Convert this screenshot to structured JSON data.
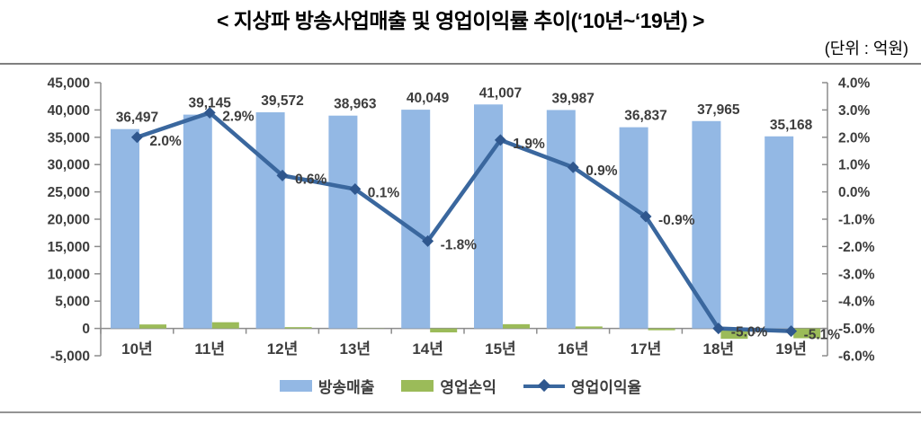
{
  "header": {
    "title": "< 지상파 방송사업매출 및 영업이익률 추이(‘10년~‘19년) >",
    "unit_label": "(단위 : 억원)"
  },
  "chart_data": {
    "type": "bar",
    "subtype": "combo-bar-line-dual-axis",
    "title": "지상파 방송사업매출 및 영업이익률 추이(‘10년~‘19년)",
    "unit": "억원",
    "categories": [
      "10년",
      "11년",
      "12년",
      "13년",
      "14년",
      "15년",
      "16년",
      "17년",
      "18년",
      "19년"
    ],
    "series": [
      {
        "name": "방송매출",
        "type": "bar",
        "axis": "left",
        "color": "#93b8e4",
        "values": [
          36497,
          39145,
          39572,
          38963,
          40049,
          41007,
          39987,
          36837,
          37965,
          35168
        ],
        "labels": [
          "36,497",
          "39,145",
          "39,572",
          "38,963",
          "40,049",
          "41,007",
          "39,987",
          "36,837",
          "37,965",
          "35,168"
        ]
      },
      {
        "name": "영업손익",
        "type": "bar",
        "axis": "left",
        "color": "#9bbb59",
        "values": [
          730,
          1135,
          237,
          39,
          -721,
          779,
          360,
          -332,
          -1898,
          -1794
        ]
      },
      {
        "name": "영업이익율",
        "type": "line",
        "axis": "right",
        "color": "#3a679e",
        "marker_color": "#2f578e",
        "values": [
          2.0,
          2.9,
          0.6,
          0.1,
          -1.8,
          1.9,
          0.9,
          -0.9,
          -5.0,
          -5.1
        ],
        "labels": [
          "2.0%",
          "2.9%",
          "0.6%",
          "0.1%",
          "-1.8%",
          "1.9%",
          "0.9%",
          "-0.9%",
          "-5.0%",
          "-5.1%"
        ]
      }
    ],
    "left_axis": {
      "min": -5000,
      "max": 45000,
      "step": 5000,
      "tick_labels": [
        "45,000",
        "40,000",
        "35,000",
        "30,000",
        "25,000",
        "20,000",
        "15,000",
        "10,000",
        "5,000",
        "0",
        "-5,000"
      ]
    },
    "right_axis": {
      "min": -6,
      "max": 4,
      "step": 1,
      "tick_labels": [
        "4.0%",
        "3.0%",
        "2.0%",
        "1.0%",
        "0.0%",
        "-1.0%",
        "-2.0%",
        "-3.0%",
        "-4.0%",
        "-5.0%",
        "-6.0%"
      ]
    },
    "legend": {
      "position": "bottom",
      "items": [
        "방송매출",
        "영업손익",
        "영업이익율"
      ]
    },
    "grid": false,
    "axis_color": "#8c8c8c"
  }
}
